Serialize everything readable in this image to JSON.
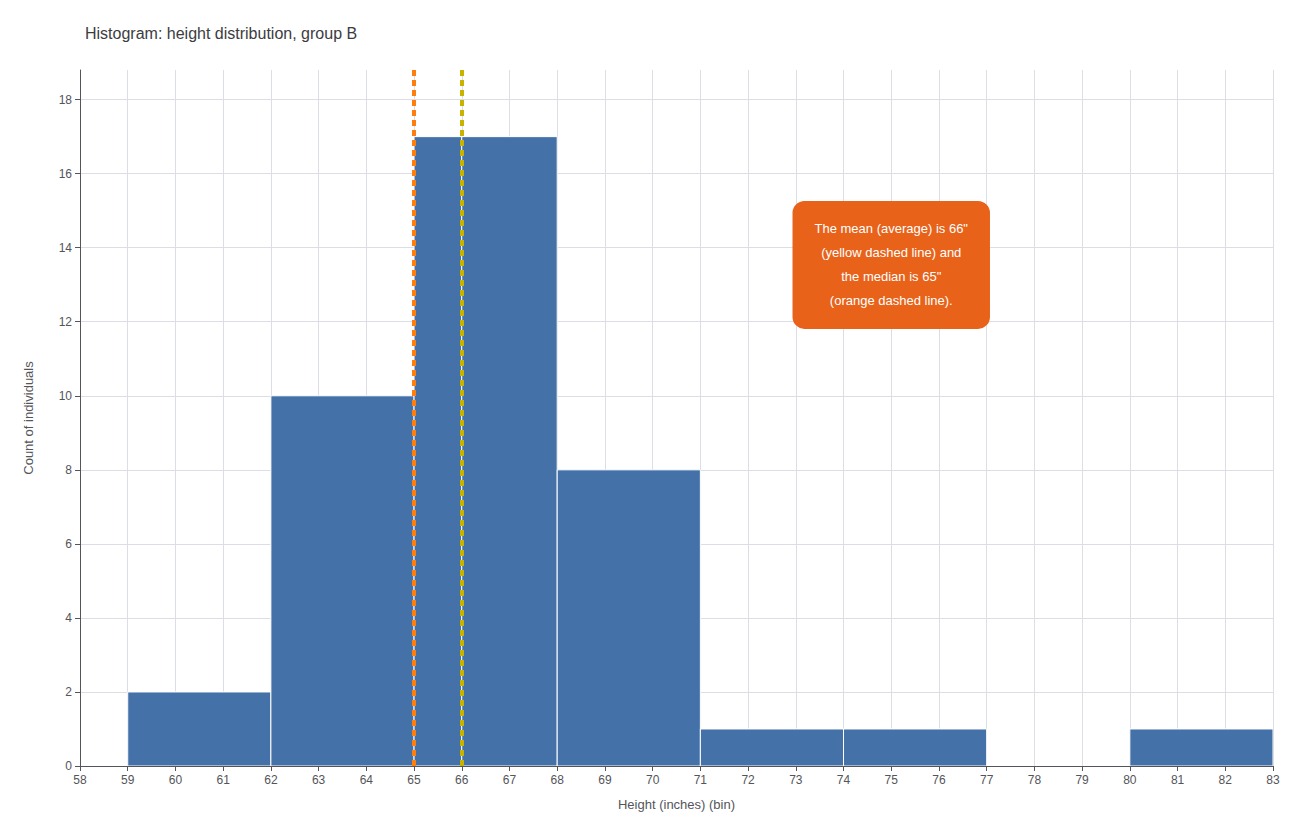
{
  "chart_data": {
    "type": "histogram",
    "title": "Histogram: height distribution, group B",
    "xlabel": "Height (inches) (bin)",
    "ylabel": "Count of individuals",
    "x": [
      59,
      62,
      65,
      66,
      68,
      71,
      74,
      80
    ],
    "widths": [
      3,
      3,
      1,
      2,
      3,
      3,
      3,
      3
    ],
    "values": [
      2,
      10,
      17,
      17,
      8,
      1,
      1,
      1
    ],
    "color": "#4472a8",
    "xlim": [
      58,
      83
    ],
    "xticks": [
      58,
      59,
      60,
      61,
      62,
      63,
      64,
      65,
      66,
      67,
      68,
      69,
      70,
      71,
      72,
      73,
      74,
      75,
      76,
      77,
      78,
      79,
      80,
      81,
      82,
      83
    ],
    "ylim": [
      0,
      18.8
    ],
    "yticks": [
      0,
      2,
      4,
      6,
      8,
      10,
      12,
      14,
      16,
      18
    ],
    "grid": true,
    "vlines": [
      {
        "x": 65,
        "color": "#FF7F0E",
        "line_style": "dashed"
      },
      {
        "x": 66,
        "color": "#c8b400",
        "line_style": "dashed"
      }
    ],
    "annotation": {
      "text": "The mean (average) is 66\"\n(yellow dashed line) and\nthe median is 65\"\n(orange dashed line).",
      "color": "#E8621A"
    }
  }
}
